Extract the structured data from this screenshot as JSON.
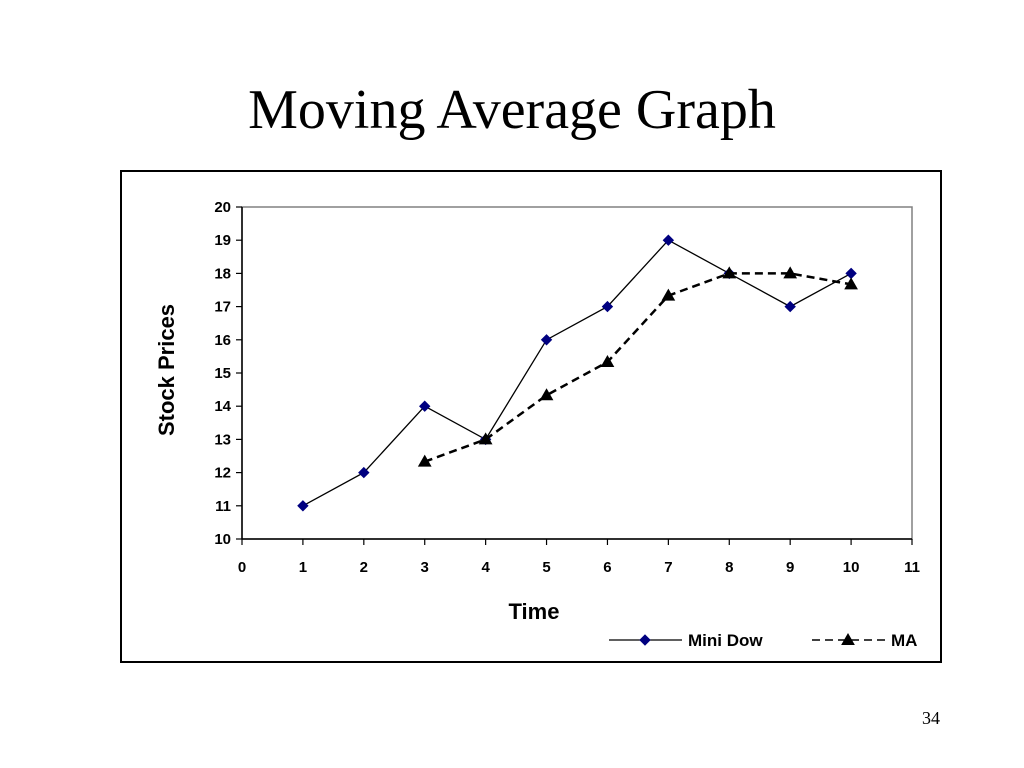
{
  "slide": {
    "title": "Moving Average Graph",
    "page_number": "34"
  },
  "chart_data": {
    "type": "line",
    "xlabel": "Time",
    "ylabel": "Stock Prices",
    "xlim": [
      0,
      11
    ],
    "ylim": [
      10,
      20
    ],
    "x_ticks": [
      0,
      1,
      2,
      3,
      4,
      5,
      6,
      7,
      8,
      9,
      10,
      11
    ],
    "y_ticks": [
      10,
      11,
      12,
      13,
      14,
      15,
      16,
      17,
      18,
      19,
      20
    ],
    "grid": false,
    "legend_position": "bottom-right",
    "series": [
      {
        "name": "Mini Dow",
        "line_style": "solid",
        "marker": "diamond",
        "marker_color": "#000080",
        "line_color": "#000000",
        "points": [
          [
            1,
            11
          ],
          [
            2,
            12
          ],
          [
            3,
            14
          ],
          [
            4,
            13
          ],
          [
            5,
            16
          ],
          [
            6,
            17
          ],
          [
            7,
            19
          ],
          [
            8,
            18
          ],
          [
            9,
            17
          ],
          [
            10,
            18
          ]
        ]
      },
      {
        "name": "MA",
        "line_style": "dashed",
        "marker": "triangle",
        "marker_color": "#000000",
        "line_color": "#000000",
        "points": [
          [
            3,
            12.33
          ],
          [
            4,
            13
          ],
          [
            5,
            14.33
          ],
          [
            6,
            15.33
          ],
          [
            7,
            17.33
          ],
          [
            8,
            18
          ],
          [
            9,
            18
          ],
          [
            10,
            17.67
          ]
        ]
      }
    ]
  }
}
